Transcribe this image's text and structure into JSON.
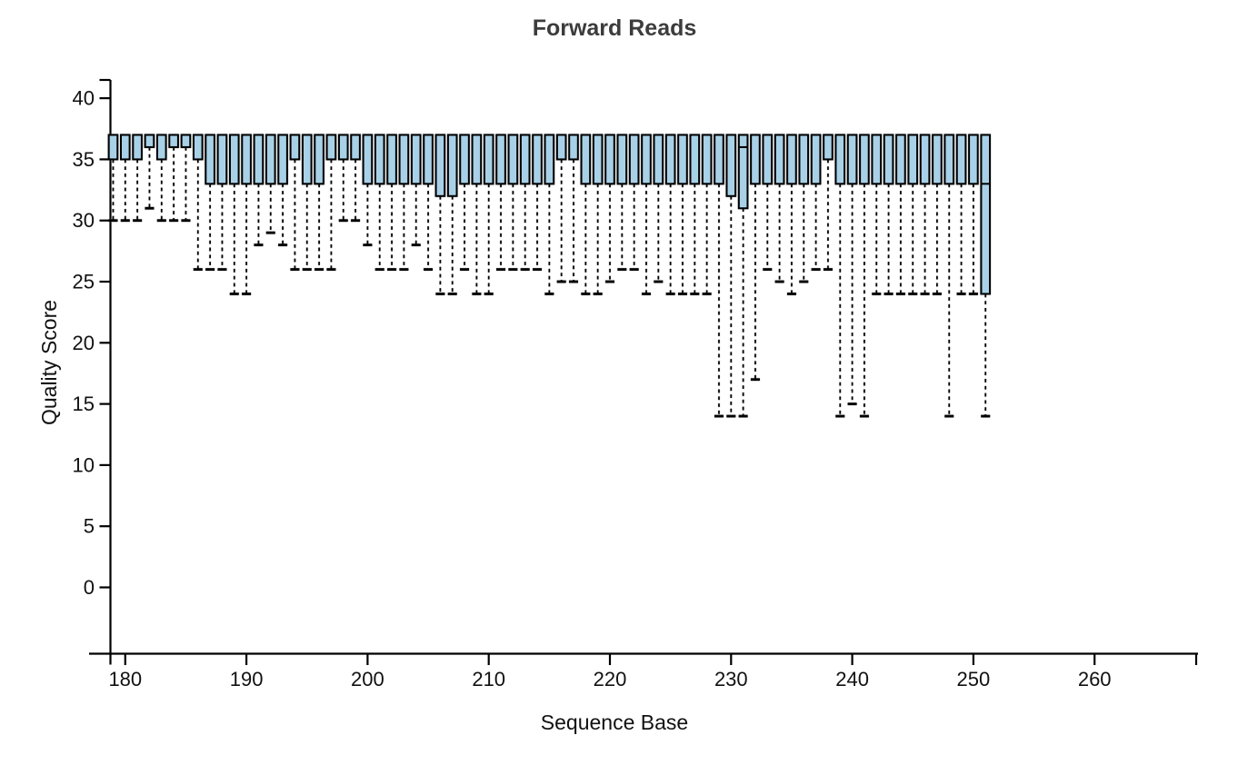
{
  "chart_data": {
    "type": "boxplot",
    "title": "Forward Reads",
    "xlabel": "Sequence Base",
    "ylabel": "Quality Score",
    "x_ticks": [
      180,
      190,
      200,
      210,
      220,
      230,
      240,
      250,
      260
    ],
    "y_ticks": [
      0,
      5,
      10,
      15,
      20,
      25,
      30,
      35,
      40
    ],
    "x_range": [
      178.5,
      268
    ],
    "y_range": [
      -5.5,
      41.5
    ],
    "grid": false,
    "legend": "none",
    "box_top": 37,
    "boxes": [
      {
        "b": 179,
        "q1": 35,
        "lo": 30
      },
      {
        "b": 180,
        "q1": 35,
        "lo": 30
      },
      {
        "b": 181,
        "q1": 35,
        "lo": 30
      },
      {
        "b": 182,
        "q1": 36,
        "lo": 31
      },
      {
        "b": 183,
        "q1": 35,
        "lo": 30
      },
      {
        "b": 184,
        "q1": 36,
        "lo": 30
      },
      {
        "b": 185,
        "q1": 36,
        "lo": 30
      },
      {
        "b": 186,
        "q1": 35,
        "lo": 26
      },
      {
        "b": 187,
        "q1": 33,
        "lo": 26
      },
      {
        "b": 188,
        "q1": 33,
        "lo": 26
      },
      {
        "b": 189,
        "q1": 33,
        "lo": 24
      },
      {
        "b": 190,
        "q1": 33,
        "lo": 24
      },
      {
        "b": 191,
        "q1": 33,
        "lo": 28
      },
      {
        "b": 192,
        "q1": 33,
        "lo": 29
      },
      {
        "b": 193,
        "q1": 33,
        "lo": 28
      },
      {
        "b": 194,
        "q1": 35,
        "lo": 26
      },
      {
        "b": 195,
        "q1": 33,
        "lo": 26
      },
      {
        "b": 196,
        "q1": 33,
        "lo": 26
      },
      {
        "b": 197,
        "q1": 35,
        "lo": 26
      },
      {
        "b": 198,
        "q1": 35,
        "lo": 30
      },
      {
        "b": 199,
        "q1": 35,
        "lo": 30
      },
      {
        "b": 200,
        "q1": 33,
        "lo": 28
      },
      {
        "b": 201,
        "q1": 33,
        "lo": 26
      },
      {
        "b": 202,
        "q1": 33,
        "lo": 26
      },
      {
        "b": 203,
        "q1": 33,
        "lo": 26
      },
      {
        "b": 204,
        "q1": 33,
        "lo": 28
      },
      {
        "b": 205,
        "q1": 33,
        "lo": 26
      },
      {
        "b": 206,
        "q1": 32,
        "lo": 24
      },
      {
        "b": 207,
        "q1": 32,
        "lo": 24
      },
      {
        "b": 208,
        "q1": 33,
        "lo": 26
      },
      {
        "b": 209,
        "q1": 33,
        "lo": 24
      },
      {
        "b": 210,
        "q1": 33,
        "lo": 24
      },
      {
        "b": 211,
        "q1": 33,
        "lo": 26
      },
      {
        "b": 212,
        "q1": 33,
        "lo": 26
      },
      {
        "b": 213,
        "q1": 33,
        "lo": 26
      },
      {
        "b": 214,
        "q1": 33,
        "lo": 26
      },
      {
        "b": 215,
        "q1": 33,
        "lo": 24
      },
      {
        "b": 216,
        "q1": 35,
        "lo": 25
      },
      {
        "b": 217,
        "q1": 35,
        "lo": 25
      },
      {
        "b": 218,
        "q1": 33,
        "lo": 24
      },
      {
        "b": 219,
        "q1": 33,
        "lo": 24
      },
      {
        "b": 220,
        "q1": 33,
        "lo": 25
      },
      {
        "b": 221,
        "q1": 33,
        "lo": 26
      },
      {
        "b": 222,
        "q1": 33,
        "lo": 26
      },
      {
        "b": 223,
        "q1": 33,
        "lo": 24
      },
      {
        "b": 224,
        "q1": 33,
        "lo": 25
      },
      {
        "b": 225,
        "q1": 33,
        "lo": 24
      },
      {
        "b": 226,
        "q1": 33,
        "lo": 24
      },
      {
        "b": 227,
        "q1": 33,
        "lo": 24
      },
      {
        "b": 228,
        "q1": 33,
        "lo": 24
      },
      {
        "b": 229,
        "q1": 33,
        "lo": 14
      },
      {
        "b": 230,
        "q1": 32,
        "lo": 14
      },
      {
        "b": 231,
        "q1": 31,
        "lo": 14,
        "med": 36
      },
      {
        "b": 232,
        "q1": 33,
        "lo": 17
      },
      {
        "b": 233,
        "q1": 33,
        "lo": 26
      },
      {
        "b": 234,
        "q1": 33,
        "lo": 25
      },
      {
        "b": 235,
        "q1": 33,
        "lo": 24
      },
      {
        "b": 236,
        "q1": 33,
        "lo": 25
      },
      {
        "b": 237,
        "q1": 33,
        "lo": 26
      },
      {
        "b": 238,
        "q1": 35,
        "lo": 26
      },
      {
        "b": 239,
        "q1": 33,
        "lo": 14
      },
      {
        "b": 240,
        "q1": 33,
        "lo": 15
      },
      {
        "b": 241,
        "q1": 33,
        "lo": 14
      },
      {
        "b": 242,
        "q1": 33,
        "lo": 24
      },
      {
        "b": 243,
        "q1": 33,
        "lo": 24
      },
      {
        "b": 244,
        "q1": 33,
        "lo": 24
      },
      {
        "b": 245,
        "q1": 33,
        "lo": 24
      },
      {
        "b": 246,
        "q1": 33,
        "lo": 24
      },
      {
        "b": 247,
        "q1": 33,
        "lo": 24
      },
      {
        "b": 248,
        "q1": 33,
        "lo": 14
      },
      {
        "b": 249,
        "q1": 33,
        "lo": 24
      },
      {
        "b": 250,
        "q1": 33,
        "lo": 24
      },
      {
        "b": 251,
        "q1": 24,
        "lo": 14,
        "med": 33
      }
    ],
    "colors": {
      "box_fill": "#a8d1e8",
      "box_stroke": "#000000",
      "whisker": "#000000",
      "axis": "#000000",
      "title_text": "#3c3c3c",
      "background": "#ffffff"
    }
  }
}
